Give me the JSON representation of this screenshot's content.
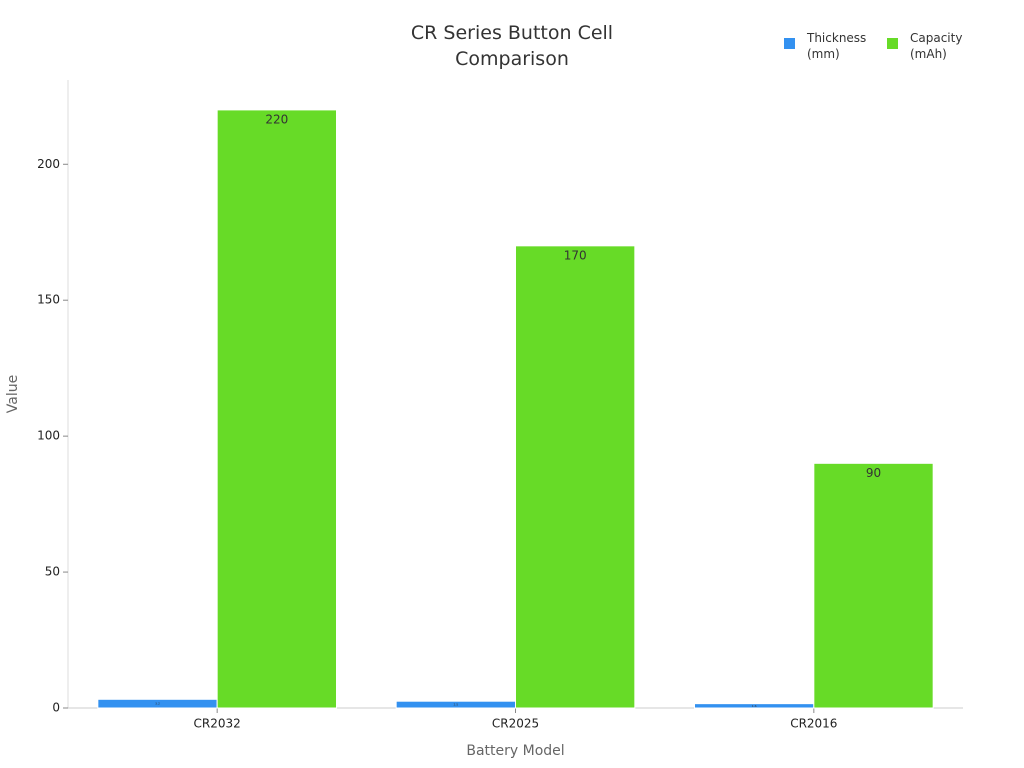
{
  "chart_data": {
    "type": "bar",
    "title": "CR Series Button Cell Comparison",
    "x_label": "Battery Model",
    "y_label": "Value",
    "categories": [
      "CR2032",
      "CR2025",
      "CR2016"
    ],
    "series": [
      {
        "name": "Thickness (mm)",
        "color": "#3391f0",
        "values": [
          3.2,
          2.5,
          1.6
        ]
      },
      {
        "name": "Capacity (mAh)",
        "color": "#67db27",
        "values": [
          220,
          170,
          90
        ]
      }
    ],
    "ylim": [
      0,
      231
    ],
    "yticks": [
      0,
      50,
      100,
      150,
      200
    ],
    "grid": false,
    "legend": "top-right"
  }
}
